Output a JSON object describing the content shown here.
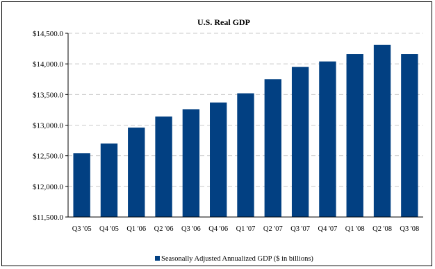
{
  "colors": {
    "bar": "#024082",
    "grid": "#c8c8c8",
    "axis": "#000000",
    "text": "#000000"
  },
  "chart_data": {
    "type": "bar",
    "title": "U.S. Real GDP",
    "xlabel": "",
    "ylabel": "",
    "categories": [
      "Q3 '05",
      "Q4 '05",
      "Q1 '06",
      "Q2 '06",
      "Q3 '06",
      "Q4 '06",
      "Q1 '07",
      "Q2 '07",
      "Q3 '07",
      "Q4 '07",
      "Q1 '08",
      "Q2 '08",
      "Q3 '08"
    ],
    "series": [
      {
        "name": "Seasonally Adjusted Annualized GDP ($ in billions)",
        "values": [
          12540,
          12700,
          12960,
          13140,
          13260,
          13370,
          13520,
          13750,
          13950,
          14040,
          14160,
          14310,
          14160
        ]
      }
    ],
    "ylim": [
      11500,
      14500
    ],
    "yticks": [
      11500,
      12000,
      12500,
      13000,
      13500,
      14000,
      14500
    ],
    "ytick_labels": [
      "$11,500.0",
      "$12,000.0",
      "$12,500.0",
      "$13,000.0",
      "$13,500.0",
      "$14,000.0",
      "$14,500.0"
    ],
    "grid": true,
    "legend_position": "bottom"
  }
}
